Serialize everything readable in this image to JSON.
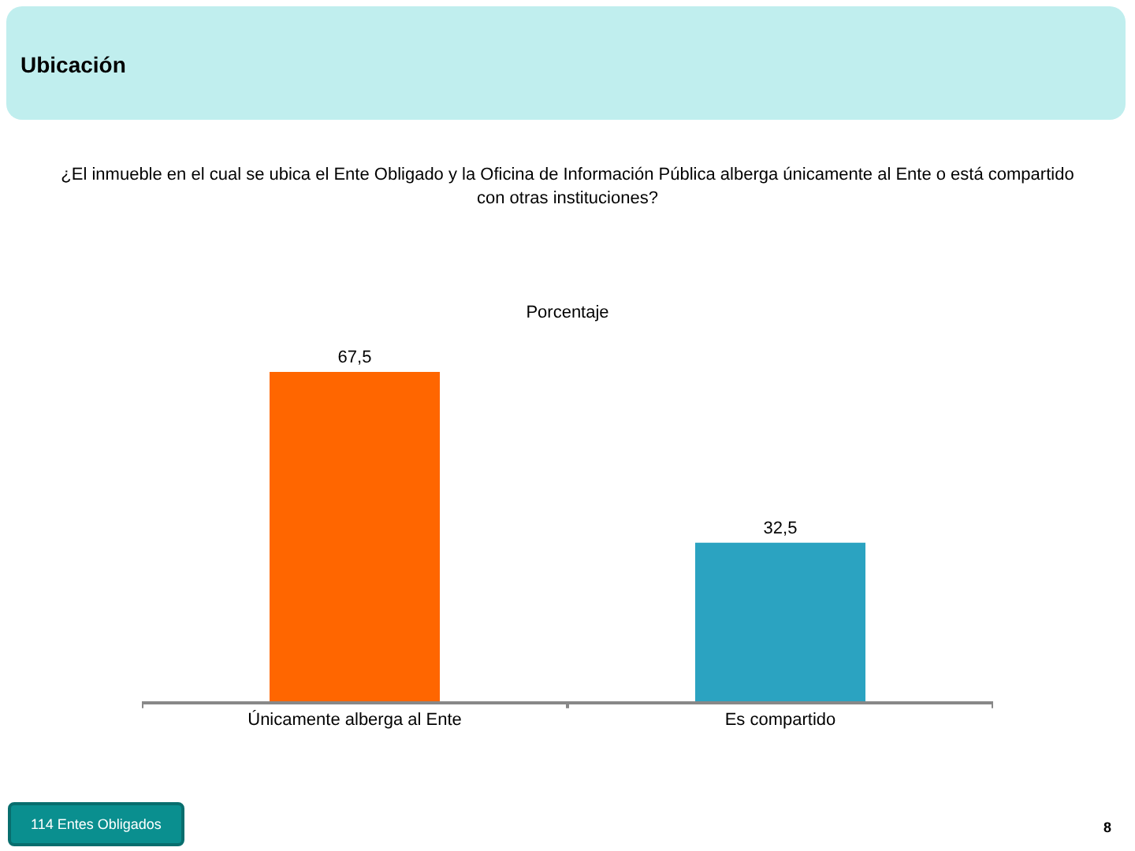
{
  "chart_data": {
    "type": "bar",
    "title": "Ubicación",
    "subtitle": "¿El inmueble en el cual se ubica el Ente Obligado y la Oficina de Información Pública alberga únicamente al Ente o está compartido con otras instituciones?",
    "ylabel": "Porcentaje",
    "categories": [
      "Únicamente alberga al Ente",
      "Es compartido"
    ],
    "values": [
      67.5,
      32.5
    ],
    "colors": [
      "#ff6600",
      "#2ba3c1"
    ],
    "value_labels": [
      "67,5",
      "32,5"
    ],
    "annotations": [
      "114 Entes Obligados",
      "8"
    ],
    "tick_labels": "x",
    "grid": false,
    "legend": false
  }
}
